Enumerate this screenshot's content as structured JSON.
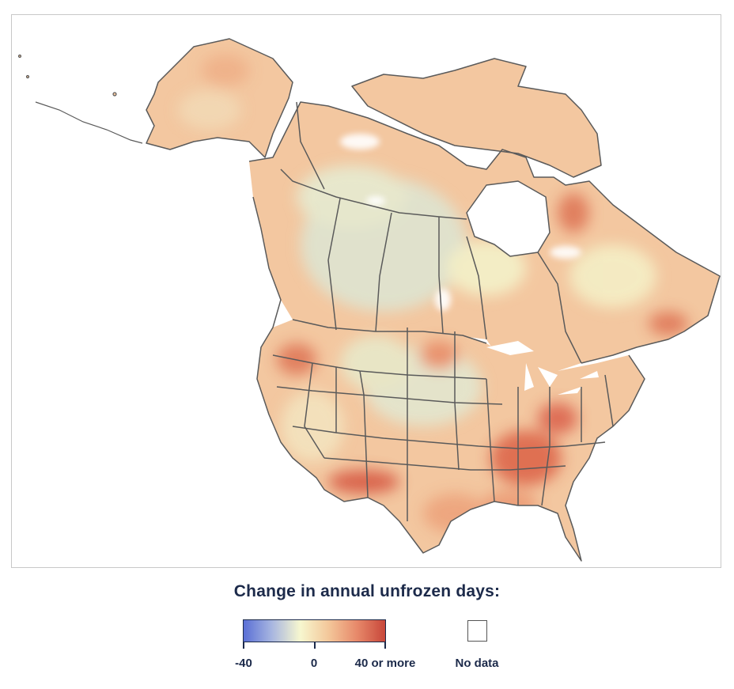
{
  "legend": {
    "title": "Change in annual unfrozen days:",
    "scale": {
      "min": -40,
      "max": 40,
      "tick_labels": [
        "-40",
        "0",
        "40 or more"
      ],
      "colors": [
        "#5a6fd6",
        "#a8b6e0",
        "#f7f7cf",
        "#f3c79a",
        "#e7896a",
        "#c8473a"
      ]
    },
    "no_data_label": "No data",
    "no_data_color": "#ffffff"
  },
  "map": {
    "region": "North America (Canada, United States, Mexico north)",
    "boundary_color": "#5a5a5a",
    "land_base_color": "#f4c9a3",
    "hotspot_color": "#d9654e",
    "cool_color": "#d6ddd9"
  }
}
